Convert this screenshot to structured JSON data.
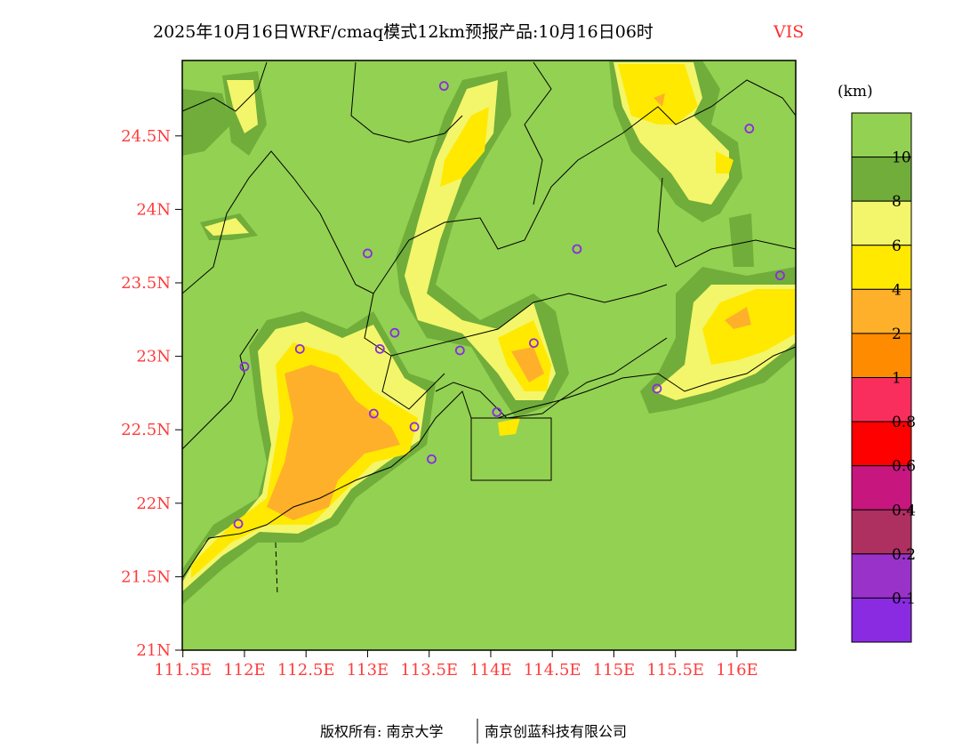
{
  "title": {
    "main": "2025年10月16日WRF/cmaq模式12km预报产品:10月16日06时",
    "variable": "VIS"
  },
  "chart_data": {
    "type": "heatmap",
    "title": "2025年10月16日WRF/cmaq模式12km预报产品:10月16日06时 VIS",
    "xlabel": "",
    "ylabel": "",
    "xlim": [
      111.5,
      116.5
    ],
    "ylim": [
      21,
      25
    ],
    "x_ticks": [
      "111.5E",
      "112E",
      "112.5E",
      "113E",
      "113.5E",
      "114E",
      "114.5E",
      "115E",
      "115.5E",
      "116E"
    ],
    "x_tick_values": [
      111.5,
      112,
      112.5,
      113,
      113.5,
      114,
      114.5,
      115,
      115.5,
      116
    ],
    "y_ticks": [
      "21N",
      "21.5N",
      "22N",
      "22.5N",
      "23N",
      "23.5N",
      "24N",
      "24.5N"
    ],
    "y_tick_values": [
      21,
      21.5,
      22,
      22.5,
      23,
      23.5,
      24,
      24.5
    ],
    "colorbar": {
      "unit": "(km)",
      "labels": [
        "10",
        "8",
        "6",
        "4",
        "2",
        "1",
        "0.8",
        "0.6",
        "0.4",
        "0.2",
        "0.1"
      ],
      "colors": [
        "#93d152",
        "#70ad3a",
        "#f3f66a",
        "#ffe900",
        "#ffb02a",
        "#ff8c00",
        "#fa2e5c",
        "#ff0000",
        "#c8167f",
        "#ae3060",
        "#9932c8",
        "#8a2be2"
      ]
    },
    "stations": [
      {
        "lon": 113.62,
        "lat": 24.84
      },
      {
        "lon": 116.1,
        "lat": 24.55
      },
      {
        "lon": 113.0,
        "lat": 23.7
      },
      {
        "lon": 114.7,
        "lat": 23.73
      },
      {
        "lon": 116.35,
        "lat": 23.55
      },
      {
        "lon": 112.45,
        "lat": 23.05
      },
      {
        "lon": 113.1,
        "lat": 23.05
      },
      {
        "lon": 113.22,
        "lat": 23.16
      },
      {
        "lon": 113.75,
        "lat": 23.04
      },
      {
        "lon": 114.35,
        "lat": 23.09
      },
      {
        "lon": 112.0,
        "lat": 22.93
      },
      {
        "lon": 113.05,
        "lat": 22.61
      },
      {
        "lon": 113.38,
        "lat": 22.52
      },
      {
        "lon": 114.05,
        "lat": 22.62
      },
      {
        "lon": 115.35,
        "lat": 22.78
      },
      {
        "lon": 113.52,
        "lat": 22.3
      },
      {
        "lon": 111.95,
        "lat": 21.86
      }
    ]
  },
  "footer": {
    "left": "版权所有: 南京大学",
    "right": "南京创蓝科技有限公司"
  }
}
